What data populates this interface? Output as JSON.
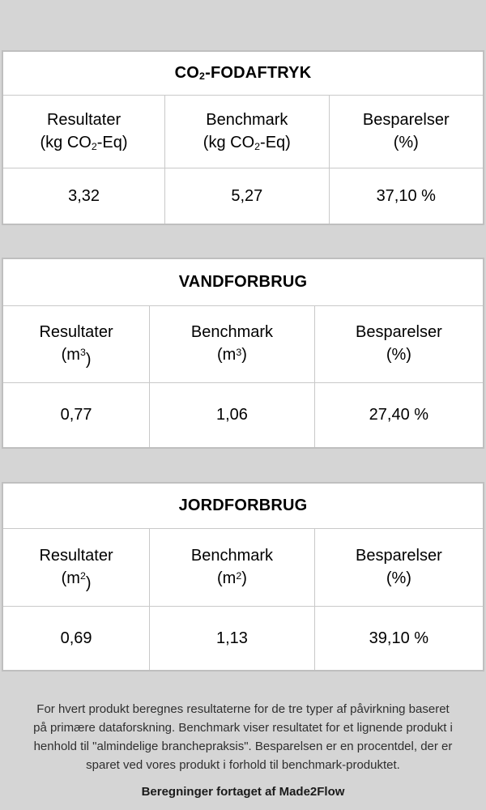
{
  "page": {
    "background_color": "#d5d5d5",
    "table_background_color": "#ffffff",
    "table_border_color": "#c9c9c9",
    "text_color": "#000000"
  },
  "tables": [
    {
      "id": "co2-footprint",
      "title": {
        "pre": "CO",
        "sub": "2",
        "post": "-FODAFTRYK"
      },
      "columns": [
        {
          "label": "Resultater",
          "unit_pre": "(kg CO",
          "unit_sub": "2",
          "unit_sup": "",
          "unit_post": "-Eq)",
          "unit_low": ""
        },
        {
          "label": "Benchmark",
          "unit_pre": "(kg CO",
          "unit_sub": "2",
          "unit_sup": "",
          "unit_post": "-Eq)",
          "unit_low": ""
        },
        {
          "label": "Besparelser",
          "unit_pre": "(%)",
          "unit_sub": "",
          "unit_sup": "",
          "unit_post": "",
          "unit_low": ""
        }
      ],
      "values": [
        "3,32",
        "5,27",
        "37,10 %"
      ]
    },
    {
      "id": "water-use",
      "title": {
        "pre": "VANDFORBRUG",
        "sub": "",
        "post": ""
      },
      "columns": [
        {
          "label": "Resultater",
          "unit_pre": "(m",
          "unit_sub": "",
          "unit_sup": "3",
          "unit_post": "",
          "unit_low": ")"
        },
        {
          "label": "Benchmark",
          "unit_pre": "(m",
          "unit_sub": "",
          "unit_sup": "3",
          "unit_post": ")",
          "unit_low": ""
        },
        {
          "label": "Besparelser",
          "unit_pre": "(%)",
          "unit_sub": "",
          "unit_sup": "",
          "unit_post": "",
          "unit_low": ""
        }
      ],
      "values": [
        "0,77",
        "1,06",
        "27,40 %"
      ]
    },
    {
      "id": "land-use",
      "title": {
        "pre": "JORDFORBRUG",
        "sub": "",
        "post": ""
      },
      "columns": [
        {
          "label": "Resultater",
          "unit_pre": "(m",
          "unit_sub": "",
          "unit_sup": "2",
          "unit_post": "",
          "unit_low": ")"
        },
        {
          "label": "Benchmark",
          "unit_pre": "(m",
          "unit_sub": "",
          "unit_sup": "2",
          "unit_post": ")",
          "unit_low": ""
        },
        {
          "label": "Besparelser",
          "unit_pre": "(%)",
          "unit_sub": "",
          "unit_sup": "",
          "unit_post": "",
          "unit_low": ""
        }
      ],
      "values": [
        "0,69",
        "1,13",
        "39,10 %"
      ]
    }
  ],
  "footer": {
    "lines": [
      "For hvert produkt beregnes resultaterne for de tre typer af påvirkning baseret",
      "på primære dataforskning. Benchmark viser resultatet for et lignende produkt i",
      "henhold til \"almindelige branchepraksis\". Besparelsen er en procentdel, der er",
      "sparet ved vores produkt i forhold til benchmark-produktet."
    ],
    "credit": "Beregninger fortaget af Made2Flow"
  }
}
